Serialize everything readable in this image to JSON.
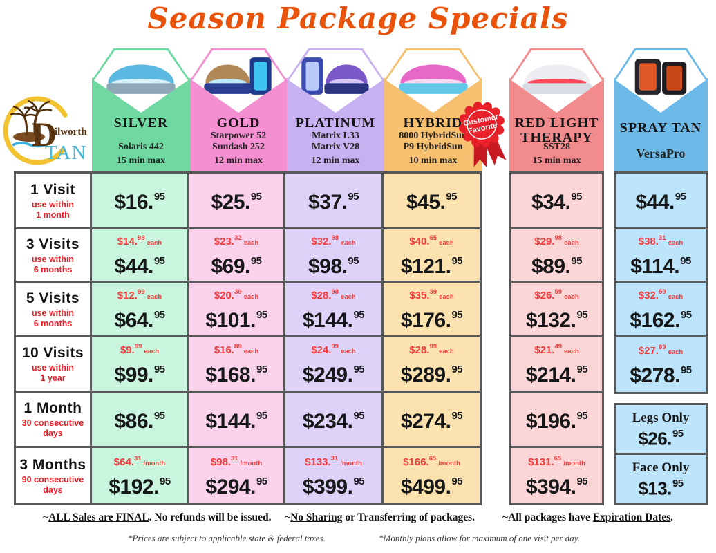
{
  "title": "Season Package Specials",
  "title_color": "#E8520A",
  "logo": {
    "d": "D",
    "rest": "ilworth",
    "tan": "TAN"
  },
  "badge": {
    "line1": "Customer",
    "line2": "Favorite",
    "color": "#E8202A"
  },
  "rows": [
    {
      "key": "1-visit",
      "label": "1 Visit",
      "note1": "use within",
      "note2": "1 month"
    },
    {
      "key": "3-visits",
      "label": "3 Visits",
      "note1": "use within",
      "note2": "6 months"
    },
    {
      "key": "5-visits",
      "label": "5 Visits",
      "note1": "use within",
      "note2": "6 months"
    },
    {
      "key": "10-visits",
      "label": "10 Visits",
      "note1": "use within",
      "note2": "1 year"
    },
    {
      "key": "1-month",
      "label": "1 Month",
      "note1": "30 consecutive",
      "note2": "days"
    },
    {
      "key": "3-months",
      "label": "3 Months",
      "note1": "90 consecutive",
      "note2": "days"
    }
  ],
  "columns": [
    {
      "id": "silver",
      "name": "SILVER",
      "models": [
        "Solaris 442"
      ],
      "max": "15 min max",
      "header_color": "#6FD9A1",
      "cell_color": "#C9F4DD",
      "prices": [
        {
          "main": "$16.",
          "cents": "95"
        },
        {
          "sub": "$14.",
          "sub_cents": "98",
          "unit": "each",
          "main": "$44.",
          "cents": "95"
        },
        {
          "sub": "$12.",
          "sub_cents": "99",
          "unit": "each",
          "main": "$64.",
          "cents": "95"
        },
        {
          "sub": "$9.",
          "sub_cents": "99",
          "unit": "each",
          "main": "$99.",
          "cents": "95"
        },
        {
          "main": "$86.",
          "cents": "95"
        },
        {
          "sub": "$64.",
          "sub_cents": "31",
          "unit": "/month",
          "main": "$192.",
          "cents": "95"
        }
      ]
    },
    {
      "id": "gold",
      "name": "GOLD",
      "models": [
        "Starpower 52",
        "Sundash 252"
      ],
      "max": "12 min max",
      "header_color": "#F48FD1",
      "cell_color": "#FBD2EC",
      "prices": [
        {
          "main": "$25.",
          "cents": "95"
        },
        {
          "sub": "$23.",
          "sub_cents": "32",
          "unit": "each",
          "main": "$69.",
          "cents": "95"
        },
        {
          "sub": "$20.",
          "sub_cents": "39",
          "unit": "each",
          "main": "$101.",
          "cents": "95"
        },
        {
          "sub": "$16.",
          "sub_cents": "89",
          "unit": "each",
          "main": "$168.",
          "cents": "95"
        },
        {
          "main": "$144.",
          "cents": "95"
        },
        {
          "sub": "$98.",
          "sub_cents": "31",
          "unit": "/month",
          "main": "$294.",
          "cents": "95"
        }
      ]
    },
    {
      "id": "platinum",
      "name": "PLATINUM",
      "models": [
        "Matrix L33",
        "Matrix V28"
      ],
      "max": "12 min max",
      "header_color": "#C8B1F0",
      "cell_color": "#DED2F8",
      "prices": [
        {
          "main": "$37.",
          "cents": "95"
        },
        {
          "sub": "$32.",
          "sub_cents": "98",
          "unit": "each",
          "main": "$98.",
          "cents": "95"
        },
        {
          "sub": "$28.",
          "sub_cents": "98",
          "unit": "each",
          "main": "$144.",
          "cents": "95"
        },
        {
          "sub": "$24.",
          "sub_cents": "99",
          "unit": "each",
          "main": "$249.",
          "cents": "95"
        },
        {
          "main": "$234.",
          "cents": "95"
        },
        {
          "sub": "$133.",
          "sub_cents": "31",
          "unit": "/month",
          "main": "$399.",
          "cents": "95"
        }
      ]
    },
    {
      "id": "hybrid",
      "name": "HYBRID",
      "models": [
        "8000 HybridSun",
        "P9 HybridSun"
      ],
      "max": "10 min max",
      "header_color": "#F6C070",
      "cell_color": "#FBE2AE",
      "prices": [
        {
          "main": "$45.",
          "cents": "95"
        },
        {
          "sub": "$40.",
          "sub_cents": "65",
          "unit": "each",
          "main": "$121.",
          "cents": "95"
        },
        {
          "sub": "$35.",
          "sub_cents": "39",
          "unit": "each",
          "main": "$176.",
          "cents": "95"
        },
        {
          "sub": "$28.",
          "sub_cents": "99",
          "unit": "each",
          "main": "$289.",
          "cents": "95"
        },
        {
          "main": "$274.",
          "cents": "95"
        },
        {
          "sub": "$166.",
          "sub_cents": "65",
          "unit": "/month",
          "main": "$499.",
          "cents": "95"
        }
      ]
    },
    {
      "id": "redlight",
      "name": "RED LIGHT THERAPY",
      "models": [
        "SST28"
      ],
      "max": "15 min max",
      "header_color": "#F28B8E",
      "cell_color": "#FCD6D6",
      "prices": [
        {
          "main": "$34.",
          "cents": "95"
        },
        {
          "sub": "$29.",
          "sub_cents": "98",
          "unit": "each",
          "main": "$89.",
          "cents": "95"
        },
        {
          "sub": "$26.",
          "sub_cents": "59",
          "unit": "each",
          "main": "$132.",
          "cents": "95"
        },
        {
          "sub": "$21.",
          "sub_cents": "49",
          "unit": "each",
          "main": "$214.",
          "cents": "95"
        },
        {
          "main": "$196.",
          "cents": "95"
        },
        {
          "sub": "$131.",
          "sub_cents": "65",
          "unit": "/month",
          "main": "$394.",
          "cents": "95"
        }
      ]
    },
    {
      "id": "spray",
      "name": "SPRAY TAN",
      "models": [
        "VersaPro"
      ],
      "max": "",
      "header_color": "#6DBAE9",
      "cell_color": "#BCE4FB",
      "prices": [
        {
          "main": "$44.",
          "cents": "95"
        },
        {
          "sub": "$38.",
          "sub_cents": "31",
          "unit": "each",
          "main": "$114.",
          "cents": "95"
        },
        {
          "sub": "$32.",
          "sub_cents": "59",
          "unit": "each",
          "main": "$162.",
          "cents": "95"
        },
        {
          "sub": "$27.",
          "sub_cents": "89",
          "unit": "each",
          "main": "$278.",
          "cents": "95"
        }
      ]
    }
  ],
  "spray_extras": [
    {
      "label": "Legs Only",
      "main": "$26.",
      "cents": "95"
    },
    {
      "label": "Face Only",
      "main": "$13.",
      "cents": "95"
    }
  ],
  "footer": {
    "notes": [
      {
        "pre": "~",
        "u": "ALL Sales are FINAL",
        "post": ". No refunds will be issued."
      },
      {
        "pre": "~",
        "u": "No Sharing",
        "post": " or Transferring of packages."
      },
      {
        "pre": "~All packages have ",
        "u": "Expiration Dates",
        "post": "."
      }
    ],
    "fine": [
      "*Prices are subject to applicable state & federal taxes.",
      "*Monthly plans allow for maximum of one visit per day."
    ]
  }
}
